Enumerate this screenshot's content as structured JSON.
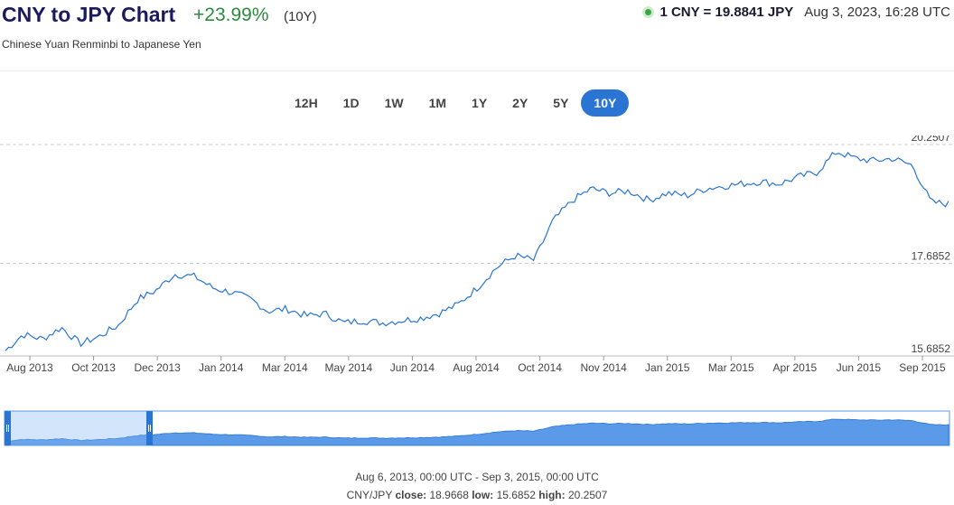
{
  "header": {
    "title": "CNY to JPY Chart",
    "change": "+23.99%",
    "period": "(10Y)",
    "subtitle": "Chinese Yuan Renminbi to Japanese Yen",
    "rate": "1 CNY = 19.8841 JPY",
    "timestamp": "Aug 3, 2023, 16:28 UTC",
    "change_color": "#2b8a3e"
  },
  "ranges": {
    "items": [
      "12H",
      "1D",
      "1W",
      "1M",
      "1Y",
      "2Y",
      "5Y",
      "10Y"
    ],
    "active": "10Y",
    "active_color": "#2a74d4"
  },
  "chart_data": {
    "type": "line",
    "y_ticks": [
      "20.2507",
      "17.6852",
      "15.6852"
    ],
    "ylim": [
      15.6852,
      20.2507
    ],
    "x_tick_labels": [
      "Aug 2013",
      "Oct 2013",
      "Dec 2013",
      "Jan 2014",
      "Mar 2014",
      "May 2014",
      "Jun 2014",
      "Aug 2014",
      "Oct 2014",
      "Nov 2014",
      "Jan 2015",
      "Mar 2015",
      "Apr 2015",
      "Jun 2015",
      "Sep 2015"
    ],
    "line_color": "#2a74d4",
    "grid": true,
    "series": [
      {
        "x": [
          "2013-08-06",
          "2013-08-20",
          "2013-09-05",
          "2013-09-20",
          "2013-10-05",
          "2013-10-20",
          "2013-11-05",
          "2013-11-20",
          "2013-12-05",
          "2013-12-20",
          "2014-01-05",
          "2014-01-20",
          "2014-02-05",
          "2014-02-20",
          "2014-03-05",
          "2014-03-20",
          "2014-04-05",
          "2014-04-20",
          "2014-05-05",
          "2014-05-20",
          "2014-06-05",
          "2014-06-20",
          "2014-07-05",
          "2014-07-20",
          "2014-08-05",
          "2014-08-20",
          "2014-09-05",
          "2014-09-20",
          "2014-10-05",
          "2014-10-20",
          "2014-11-05",
          "2014-11-20",
          "2014-12-05",
          "2014-12-20",
          "2015-01-05",
          "2015-01-20",
          "2015-02-05",
          "2015-02-20",
          "2015-03-05",
          "2015-03-20",
          "2015-04-05",
          "2015-04-20",
          "2015-05-05",
          "2015-05-20",
          "2015-06-05",
          "2015-06-20",
          "2015-07-05",
          "2015-07-20",
          "2015-08-05",
          "2015-08-20",
          "2015-09-03"
        ],
        "values": [
          15.8,
          16.15,
          16.05,
          16.3,
          15.95,
          16.1,
          16.35,
          16.9,
          17.1,
          17.45,
          17.4,
          17.15,
          17.05,
          16.9,
          16.65,
          16.7,
          16.55,
          16.6,
          16.4,
          16.45,
          16.4,
          16.45,
          16.5,
          16.6,
          16.8,
          17.15,
          17.6,
          17.85,
          17.75,
          18.6,
          19.05,
          19.3,
          19.2,
          19.25,
          19.05,
          19.2,
          19.15,
          19.3,
          19.35,
          19.4,
          19.45,
          19.4,
          19.55,
          19.65,
          20.1,
          19.95,
          19.9,
          19.95,
          19.8,
          19.0,
          18.97
        ]
      }
    ],
    "navigator": {
      "selection_range": [
        "Aug 2013",
        "Sep 2015"
      ],
      "handle_color": "#2a74d4",
      "fill_color": "#5b9ae8"
    }
  },
  "footer": {
    "range_text": "Aug 6, 2013, 00:00 UTC - Sep 3, 2015, 00:00 UTC",
    "pair": "CNY/JPY",
    "close_label": "close:",
    "close": "18.9668",
    "low_label": "low:",
    "low": "15.6852",
    "high_label": "high:",
    "high": "20.2507"
  }
}
